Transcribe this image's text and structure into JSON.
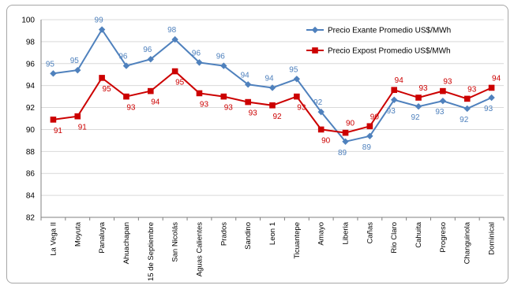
{
  "chart_data": {
    "type": "line",
    "title": "",
    "xlabel": "",
    "ylabel": "",
    "ylim": [
      82,
      100
    ],
    "yticks": [
      82,
      84,
      86,
      88,
      90,
      92,
      94,
      96,
      98,
      100
    ],
    "grid": "horizontal",
    "legend_position": "top-right",
    "categories": [
      "La Vega II",
      "Moyuta",
      "Panaluya",
      "Ahuachapan",
      "15 de Septiembre",
      "San Nicolás",
      "Aguas Calientes",
      "Prados",
      "Sandino",
      "Leon 1",
      "Ticuantepe",
      "Amayo",
      "Liberia",
      "Cañas",
      "Rio Claro",
      "Cahuita",
      "Progreso",
      "Changuinola",
      "Dominical"
    ],
    "series": [
      {
        "name": "Precio Exante Promedio US$/MWh",
        "color": "#4f81bd",
        "marker": "diamond",
        "values": [
          95.1,
          95.4,
          99.1,
          95.8,
          96.4,
          98.2,
          96.1,
          95.8,
          94.1,
          93.8,
          94.6,
          91.6,
          88.9,
          89.4,
          92.7,
          92.1,
          92.6,
          91.9,
          92.9
        ],
        "labels": [
          "95",
          "95",
          "99",
          "96",
          "96",
          "98",
          "96",
          "96",
          "94",
          "94",
          "95",
          "92",
          "89",
          "89",
          "93",
          "92",
          "93",
          "92",
          "93"
        ]
      },
      {
        "name": "Precio Expost Promedio US$/MWh",
        "color": "#cc0000",
        "marker": "square",
        "values": [
          90.9,
          91.2,
          94.7,
          93.0,
          93.5,
          95.3,
          93.3,
          93.0,
          92.5,
          92.2,
          93.0,
          90.0,
          89.7,
          90.3,
          93.6,
          92.9,
          93.5,
          92.8,
          93.8
        ],
        "labels": [
          "91",
          "91",
          "95",
          "93",
          "94",
          "95",
          "93",
          "93",
          "93",
          "92",
          "93",
          "90",
          "90",
          "90",
          "94",
          "93",
          "93",
          "93",
          "94"
        ]
      }
    ]
  }
}
